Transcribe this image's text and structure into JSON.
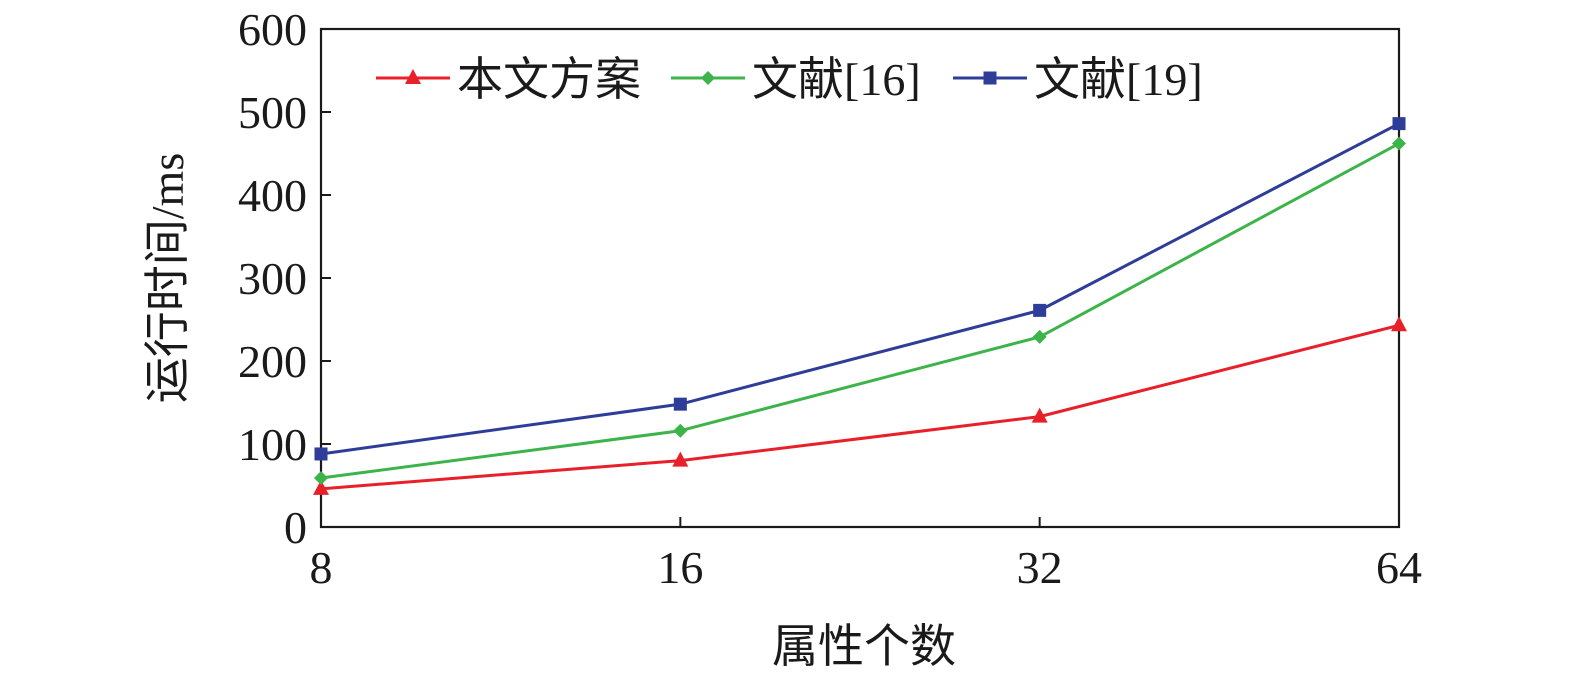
{
  "chart_data": {
    "type": "line",
    "title": "",
    "xlabel": "属性个数",
    "ylabel": "运行时间/ms",
    "categories": [
      "8",
      "16",
      "32",
      "64"
    ],
    "ylim": [
      0,
      600
    ],
    "yticks": [
      "0",
      "100",
      "200",
      "300",
      "400",
      "500",
      "600"
    ],
    "grid": false,
    "legend_position": "top",
    "series": [
      {
        "name": "本文方案",
        "color": "#e8202a",
        "marker": "triangle",
        "values": [
          46,
          80,
          133,
          243
        ]
      },
      {
        "name": "文献[16]",
        "color": "#3cb44a",
        "marker": "diamond",
        "values": [
          59,
          116,
          229,
          462
        ]
      },
      {
        "name": "文献[19]",
        "color": "#2e3d98",
        "marker": "square",
        "values": [
          88,
          148,
          261,
          486
        ]
      }
    ]
  }
}
